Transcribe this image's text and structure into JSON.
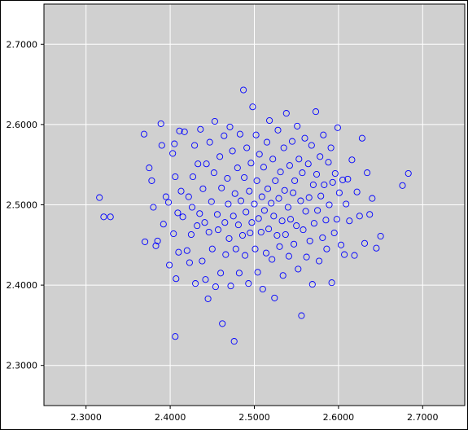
{
  "chart_data": {
    "type": "scatter",
    "title": "",
    "xlabel": "",
    "ylabel": "",
    "xlim": [
      2.25,
      2.75
    ],
    "ylim": [
      2.25,
      2.75
    ],
    "grid": true,
    "background_color": "#d0d0d0",
    "grid_color": "#ffffff",
    "marker": "circle-open",
    "marker_color": "#0000ff",
    "x_ticks": [
      2.3,
      2.4,
      2.5,
      2.6,
      2.7
    ],
    "x_tick_labels": [
      "2.3000",
      "2.4000",
      "2.5000",
      "2.6000",
      "2.7000"
    ],
    "y_ticks": [
      2.3,
      2.4,
      2.5,
      2.6,
      2.7
    ],
    "y_tick_labels": [
      "2.3000",
      "2.4000",
      "2.5000",
      "2.6000",
      "2.7000"
    ],
    "series": [
      {
        "color": "#0000ff",
        "points": [
          [
            2.316,
            2.509
          ],
          [
            2.321,
            2.485
          ],
          [
            2.329,
            2.485
          ],
          [
            2.369,
            2.588
          ],
          [
            2.37,
            2.454
          ],
          [
            2.375,
            2.546
          ],
          [
            2.378,
            2.53
          ],
          [
            2.38,
            2.497
          ],
          [
            2.383,
            2.449
          ],
          [
            2.385,
            2.455
          ],
          [
            2.389,
            2.601
          ],
          [
            2.39,
            2.574
          ],
          [
            2.392,
            2.476
          ],
          [
            2.395,
            2.51
          ],
          [
            2.398,
            2.503
          ],
          [
            2.399,
            2.425
          ],
          [
            2.403,
            2.564
          ],
          [
            2.404,
            2.464
          ],
          [
            2.405,
            2.576
          ],
          [
            2.406,
            2.535
          ],
          [
            2.407,
            2.408
          ],
          [
            2.406,
            2.336
          ],
          [
            2.409,
            2.49
          ],
          [
            2.41,
            2.441
          ],
          [
            2.411,
            2.592
          ],
          [
            2.413,
            2.517
          ],
          [
            2.415,
            2.485
          ],
          [
            2.417,
            2.591
          ],
          [
            2.42,
            2.443
          ],
          [
            2.422,
            2.51
          ],
          [
            2.423,
            2.428
          ],
          [
            2.425,
            2.463
          ],
          [
            2.426,
            2.497
          ],
          [
            2.427,
            2.535
          ],
          [
            2.429,
            2.574
          ],
          [
            2.43,
            2.402
          ],
          [
            2.432,
            2.474
          ],
          [
            2.433,
            2.551
          ],
          [
            2.435,
            2.489
          ],
          [
            2.436,
            2.594
          ],
          [
            2.438,
            2.43
          ],
          [
            2.439,
            2.52
          ],
          [
            2.441,
            2.478
          ],
          [
            2.442,
            2.407
          ],
          [
            2.443,
            2.551
          ],
          [
            2.445,
            2.383
          ],
          [
            2.446,
            2.466
          ],
          [
            2.447,
            2.578
          ],
          [
            2.449,
            2.504
          ],
          [
            2.45,
            2.445
          ],
          [
            2.452,
            2.54
          ],
          [
            2.453,
            2.604
          ],
          [
            2.454,
            2.398
          ],
          [
            2.456,
            2.488
          ],
          [
            2.457,
            2.469
          ],
          [
            2.459,
            2.56
          ],
          [
            2.46,
            2.415
          ],
          [
            2.461,
            2.521
          ],
          [
            2.462,
            2.352
          ],
          [
            2.464,
            2.586
          ],
          [
            2.465,
            2.478
          ],
          [
            2.466,
            2.438
          ],
          [
            2.468,
            2.533
          ],
          [
            2.469,
            2.501
          ],
          [
            2.47,
            2.458
          ],
          [
            2.471,
            2.597
          ],
          [
            2.472,
            2.399
          ],
          [
            2.474,
            2.567
          ],
          [
            2.475,
            2.486
          ],
          [
            2.476,
            2.33
          ],
          [
            2.477,
            2.514
          ],
          [
            2.478,
            2.445
          ],
          [
            2.48,
            2.546
          ],
          [
            2.481,
            2.475
          ],
          [
            2.482,
            2.415
          ],
          [
            2.483,
            2.588
          ],
          [
            2.484,
            2.505
          ],
          [
            2.486,
            2.462
          ],
          [
            2.487,
            2.643
          ],
          [
            2.488,
            2.534
          ],
          [
            2.489,
            2.437
          ],
          [
            2.49,
            2.491
          ],
          [
            2.491,
            2.571
          ],
          [
            2.493,
            2.402
          ],
          [
            2.494,
            2.517
          ],
          [
            2.495,
            2.465
          ],
          [
            2.496,
            2.552
          ],
          [
            2.497,
            2.478
          ],
          [
            2.498,
            2.622
          ],
          [
            2.5,
            2.501
          ],
          [
            2.501,
            2.445
          ],
          [
            2.502,
            2.587
          ],
          [
            2.503,
            2.53
          ],
          [
            2.504,
            2.416
          ],
          [
            2.505,
            2.483
          ],
          [
            2.506,
            2.563
          ],
          [
            2.508,
            2.466
          ],
          [
            2.509,
            2.51
          ],
          [
            2.51,
            2.395
          ],
          [
            2.511,
            2.547
          ],
          [
            2.512,
            2.493
          ],
          [
            2.514,
            2.44
          ],
          [
            2.515,
            2.578
          ],
          [
            2.516,
            2.52
          ],
          [
            2.517,
            2.47
          ],
          [
            2.518,
            2.605
          ],
          [
            2.52,
            2.502
          ],
          [
            2.521,
            2.432
          ],
          [
            2.522,
            2.557
          ],
          [
            2.523,
            2.486
          ],
          [
            2.524,
            2.384
          ],
          [
            2.525,
            2.53
          ],
          [
            2.527,
            2.462
          ],
          [
            2.528,
            2.593
          ],
          [
            2.529,
            2.508
          ],
          [
            2.53,
            2.448
          ],
          [
            2.531,
            2.541
          ],
          [
            2.533,
            2.48
          ],
          [
            2.534,
            2.412
          ],
          [
            2.535,
            2.571
          ],
          [
            2.536,
            2.518
          ],
          [
            2.537,
            2.463
          ],
          [
            2.538,
            2.614
          ],
          [
            2.54,
            2.497
          ],
          [
            2.541,
            2.436
          ],
          [
            2.542,
            2.549
          ],
          [
            2.543,
            2.482
          ],
          [
            2.545,
            2.579
          ],
          [
            2.546,
            2.515
          ],
          [
            2.547,
            2.451
          ],
          [
            2.548,
            2.53
          ],
          [
            2.55,
            2.474
          ],
          [
            2.551,
            2.598
          ],
          [
            2.552,
            2.42
          ],
          [
            2.553,
            2.557
          ],
          [
            2.555,
            2.505
          ],
          [
            2.556,
            2.362
          ],
          [
            2.557,
            2.54
          ],
          [
            2.558,
            2.469
          ],
          [
            2.56,
            2.583
          ],
          [
            2.561,
            2.492
          ],
          [
            2.562,
            2.435
          ],
          [
            2.564,
            2.551
          ],
          [
            2.565,
            2.509
          ],
          [
            2.566,
            2.455
          ],
          [
            2.568,
            2.574
          ],
          [
            2.569,
            2.401
          ],
          [
            2.57,
            2.525
          ],
          [
            2.571,
            2.477
          ],
          [
            2.573,
            2.616
          ],
          [
            2.574,
            2.538
          ],
          [
            2.575,
            2.493
          ],
          [
            2.577,
            2.43
          ],
          [
            2.578,
            2.56
          ],
          [
            2.579,
            2.511
          ],
          [
            2.581,
            2.459
          ],
          [
            2.582,
            2.587
          ],
          [
            2.583,
            2.525
          ],
          [
            2.585,
            2.481
          ],
          [
            2.586,
            2.445
          ],
          [
            2.588,
            2.553
          ],
          [
            2.589,
            2.5
          ],
          [
            2.591,
            2.571
          ],
          [
            2.592,
            2.403
          ],
          [
            2.593,
            2.528
          ],
          [
            2.595,
            2.465
          ],
          [
            2.596,
            2.539
          ],
          [
            2.598,
            2.482
          ],
          [
            2.599,
            2.596
          ],
          [
            2.601,
            2.515
          ],
          [
            2.603,
            2.45
          ],
          [
            2.605,
            2.531
          ],
          [
            2.607,
            2.438
          ],
          [
            2.609,
            2.501
          ],
          [
            2.611,
            2.532
          ],
          [
            2.613,
            2.48
          ],
          [
            2.616,
            2.556
          ],
          [
            2.619,
            2.437
          ],
          [
            2.622,
            2.516
          ],
          [
            2.625,
            2.486
          ],
          [
            2.628,
            2.583
          ],
          [
            2.631,
            2.452
          ],
          [
            2.634,
            2.54
          ],
          [
            2.637,
            2.488
          ],
          [
            2.64,
            2.508
          ],
          [
            2.645,
            2.446
          ],
          [
            2.65,
            2.461
          ],
          [
            2.676,
            2.524
          ],
          [
            2.683,
            2.539
          ]
        ]
      }
    ]
  }
}
